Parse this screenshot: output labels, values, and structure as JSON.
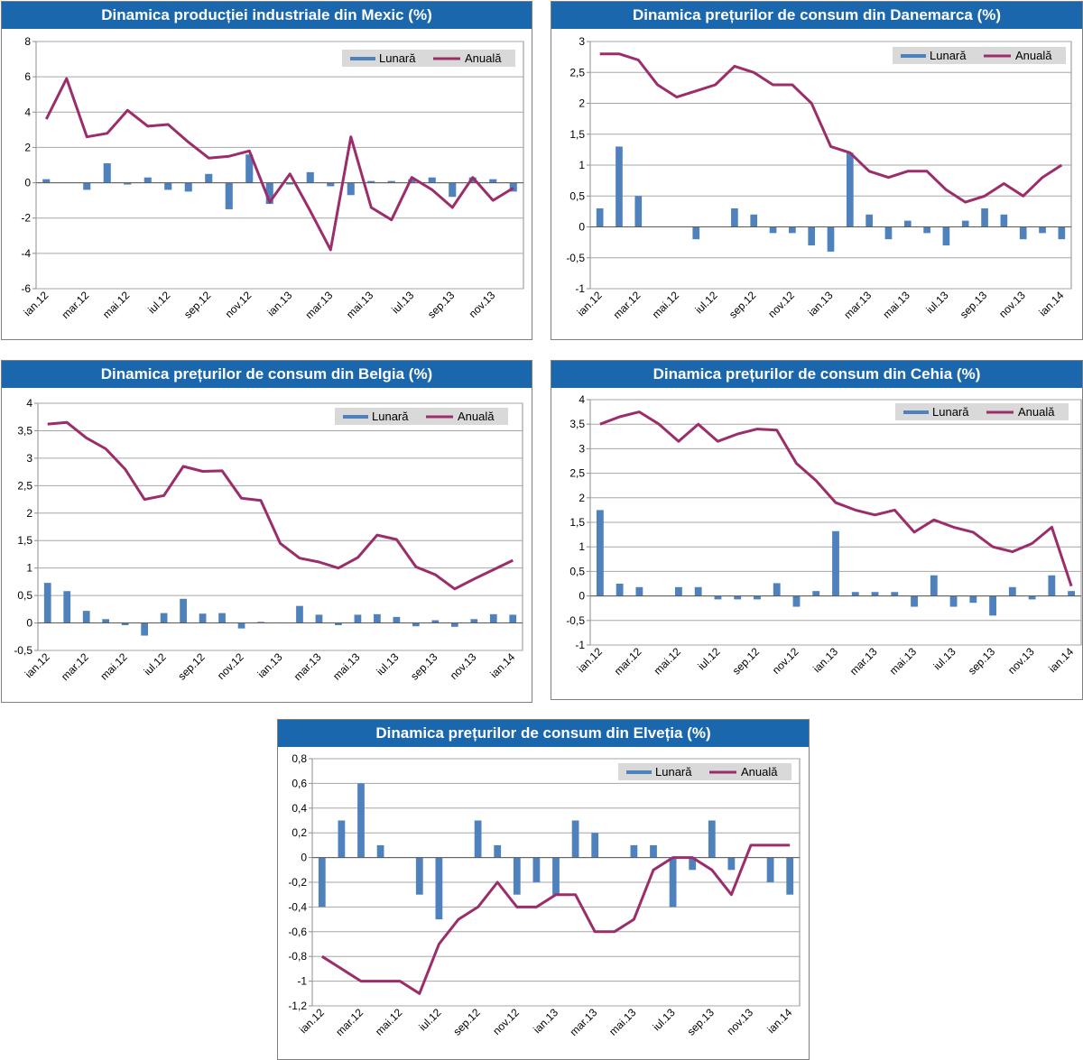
{
  "colors": {
    "monthly": "#4f81bd",
    "annual": "#9b2d6a",
    "title_bg": "#1b67ad",
    "grid": "#a6a6a6"
  },
  "legend": {
    "monthly": "Lunară",
    "annual": "Anuală"
  },
  "chart_data": [
    {
      "id": "mexic",
      "type": "bar+line",
      "title": "Dinamica producției industriale din Mexic (%)",
      "ylim": [
        -6,
        8
      ],
      "yticks": [
        "8",
        "6",
        "4",
        "2",
        "0",
        "-2",
        "-4",
        "-6"
      ],
      "xticks": [
        "ian.12",
        "mar.12",
        "mai.12",
        "iul.12",
        "sep.12",
        "nov.12",
        "ian.13",
        "mar.13",
        "mai.13",
        "iul.13",
        "sep.13",
        "nov.13"
      ],
      "legend_position": "top-right",
      "series": [
        {
          "name": "Lunară",
          "type": "bar",
          "values": [
            0.2,
            0,
            -0.4,
            1.1,
            -0.1,
            0.3,
            -0.4,
            -0.5,
            0.5,
            -1.5,
            1.6,
            -1.2,
            -0.1,
            0.6,
            -0.2,
            -0.7,
            0.1,
            0.1,
            0.2,
            0.3,
            -0.8,
            0.3,
            0.2,
            -0.5
          ]
        },
        {
          "name": "Anuală",
          "type": "line",
          "values": [
            3.6,
            5.9,
            2.6,
            2.8,
            4.1,
            3.2,
            3.3,
            2.3,
            1.4,
            1.5,
            1.8,
            -1.1,
            0.5,
            -1.6,
            -3.8,
            2.6,
            -1.4,
            -2.1,
            0.3,
            -0.4,
            -1.4,
            0.3,
            -1,
            -0.3
          ]
        }
      ]
    },
    {
      "id": "danemarca",
      "type": "bar+line",
      "title": "Dinamica prețurilor de consum din Danemarca (%)",
      "ylim": [
        -1,
        3
      ],
      "yticks": [
        "3",
        "2,5",
        "2",
        "1,5",
        "1",
        "0,5",
        "0",
        "-0,5",
        "-1"
      ],
      "xticks": [
        "ian.12",
        "mar.12",
        "mai.12",
        "iul.12",
        "sep.12",
        "nov.12",
        "ian.13",
        "mar.13",
        "mai.13",
        "iul.13",
        "sep.13",
        "nov.13",
        "ian.14"
      ],
      "legend_position": "top-right",
      "series": [
        {
          "name": "Lunară",
          "type": "bar",
          "values": [
            0.3,
            1.3,
            0.5,
            0,
            0,
            -0.2,
            0,
            0.3,
            0.2,
            -0.1,
            -0.1,
            -0.3,
            -0.4,
            1.2,
            0.2,
            -0.2,
            0.1,
            -0.1,
            -0.3,
            0.1,
            0.3,
            0.2,
            -0.2,
            -0.1,
            -0.2
          ]
        },
        {
          "name": "Anuală",
          "type": "line",
          "values": [
            2.8,
            2.8,
            2.7,
            2.3,
            2.1,
            2.2,
            2.3,
            2.6,
            2.5,
            2.3,
            2.3,
            2,
            1.3,
            1.2,
            0.9,
            0.8,
            0.9,
            0.9,
            0.6,
            0.4,
            0.5,
            0.7,
            0.5,
            0.8,
            1
          ]
        }
      ]
    },
    {
      "id": "belgia",
      "type": "bar+line",
      "title": "Dinamica prețurilor de consum din Belgia (%)",
      "ylim": [
        -0.5,
        4
      ],
      "yticks": [
        "4",
        "3,5",
        "3",
        "2,5",
        "2",
        "1,5",
        "1",
        "0,5",
        "0",
        "-0,5"
      ],
      "xticks": [
        "ian.12",
        "mar.12",
        "mai.12",
        "iul.12",
        "sep.12",
        "nov.12",
        "ian.13",
        "mar.13",
        "mai.13",
        "iul.13",
        "sep.13",
        "nov.13",
        "ian.14"
      ],
      "legend_position": "top-right",
      "series": [
        {
          "name": "Lunară",
          "type": "bar",
          "values": [
            0.73,
            0.58,
            0.22,
            0.07,
            -0.04,
            -0.23,
            0.18,
            0.44,
            0.17,
            0.18,
            -0.1,
            0.02,
            0.01,
            0.31,
            0.15,
            -0.04,
            0.15,
            0.16,
            0.11,
            -0.06,
            0.05,
            -0.07,
            0.07,
            0.16,
            0.15
          ]
        },
        {
          "name": "Anuală",
          "type": "line",
          "values": [
            3.62,
            3.65,
            3.37,
            3.17,
            2.8,
            2.25,
            2.32,
            2.85,
            2.76,
            2.77,
            2.27,
            2.23,
            1.45,
            1.18,
            1.11,
            1,
            1.19,
            1.6,
            1.52,
            1.02,
            0.88,
            0.62,
            0.8,
            0.97,
            1.14
          ]
        }
      ]
    },
    {
      "id": "cehia",
      "type": "bar+line",
      "title": "Dinamica prețurilor de consum din Cehia (%)",
      "ylim": [
        -1,
        4
      ],
      "yticks": [
        "4",
        "3,5",
        "3",
        "2,5",
        "2",
        "1,5",
        "1",
        "0,5",
        "0",
        "-0,5",
        "-1"
      ],
      "xticks": [
        "ian.12",
        "mar.12",
        "mai.12",
        "iul.12",
        "sep.12",
        "nov.12",
        "ian.13",
        "mar.13",
        "mai.13",
        "iul.13",
        "sep.13",
        "nov.13",
        "ian.14"
      ],
      "legend_position": "top-right",
      "series": [
        {
          "name": "Lunară",
          "type": "bar",
          "values": [
            1.75,
            0.25,
            0.18,
            0,
            0.18,
            0.18,
            -0.07,
            -0.07,
            -0.07,
            0.26,
            -0.22,
            0.1,
            1.32,
            0.08,
            0.08,
            0.08,
            -0.22,
            0.42,
            -0.22,
            -0.14,
            -0.4,
            0.18,
            -0.07,
            0.42,
            0.1
          ]
        },
        {
          "name": "Anuală",
          "type": "line",
          "values": [
            3.5,
            3.65,
            3.75,
            3.5,
            3.15,
            3.5,
            3.15,
            3.3,
            3.4,
            3.38,
            2.7,
            2.35,
            1.9,
            1.75,
            1.65,
            1.75,
            1.3,
            1.55,
            1.4,
            1.3,
            1,
            0.9,
            1.07,
            1.4,
            0.2
          ]
        }
      ]
    },
    {
      "id": "elvetia",
      "type": "bar+line",
      "title": "Dinamica prețurilor de consum din Elveția (%)",
      "ylim": [
        -1.2,
        0.8
      ],
      "yticks": [
        "0,8",
        "0,6",
        "0,4",
        "0,2",
        "0",
        "-0,2",
        "-0,4",
        "-0,6",
        "-0,8",
        "-1",
        "-1,2"
      ],
      "xticks": [
        "ian.12",
        "mar.12",
        "mai.12",
        "iul.12",
        "sep.12",
        "nov.12",
        "ian.13",
        "mar.13",
        "mai.13",
        "iul.13",
        "sep.13",
        "nov.13",
        "ian.14"
      ],
      "legend_position": "top-right",
      "series": [
        {
          "name": "Lunară",
          "type": "bar",
          "values": [
            -0.4,
            0.3,
            0.6,
            0.1,
            0,
            -0.3,
            -0.5,
            0,
            0.3,
            0.1,
            -0.3,
            -0.2,
            -0.3,
            0.3,
            0.2,
            0,
            0.1,
            0.1,
            -0.4,
            -0.1,
            0.3,
            -0.1,
            0,
            -0.2,
            -0.3
          ]
        },
        {
          "name": "Anuală",
          "type": "line",
          "values": [
            -0.8,
            -0.9,
            -1,
            -1,
            -1,
            -1.1,
            -0.7,
            -0.5,
            -0.4,
            -0.2,
            -0.4,
            -0.4,
            -0.3,
            -0.3,
            -0.6,
            -0.6,
            -0.5,
            -0.1,
            0,
            0,
            -0.1,
            -0.3,
            0.1,
            0.1,
            0.1
          ]
        }
      ]
    }
  ]
}
